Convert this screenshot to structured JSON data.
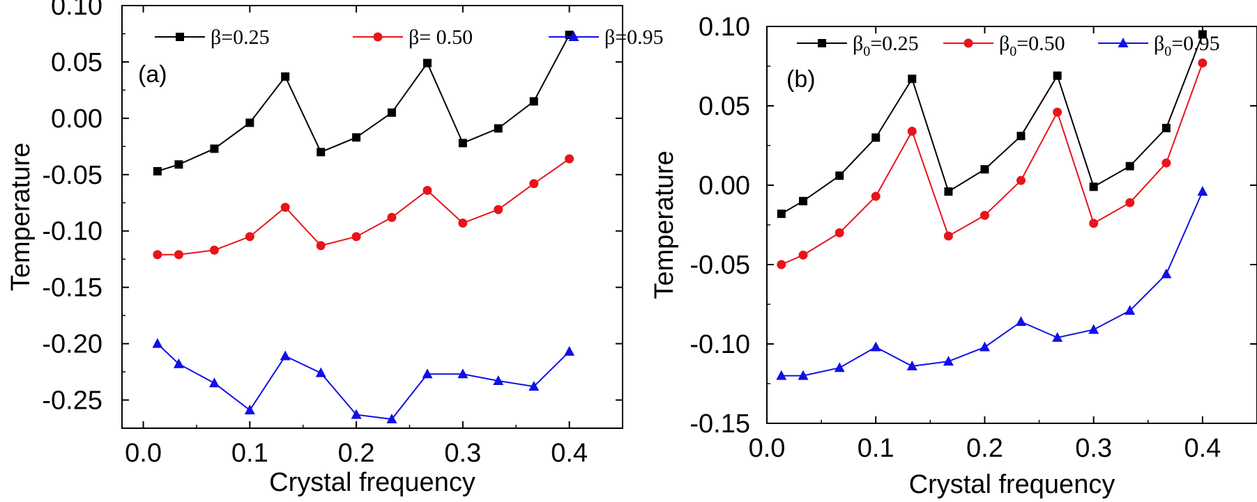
{
  "chart_data": [
    {
      "type": "line",
      "panel_label": "(a)",
      "xlabel": "Crystal frequency",
      "ylabel": "Temperature",
      "xlim": [
        -0.02,
        0.45
      ],
      "ylim": [
        -0.275,
        0.1
      ],
      "xticks": [
        0.0,
        0.1,
        0.2,
        0.3,
        0.4
      ],
      "xtick_labels": [
        "0.0",
        "0.1",
        "0.2",
        "0.3",
        "0.4"
      ],
      "yticks": [
        0.1,
        0.05,
        0.0,
        -0.05,
        -0.1,
        -0.15,
        -0.2,
        -0.25
      ],
      "ytick_labels": [
        "0.10",
        "0.05",
        "0.00",
        "-0.05",
        "-0.10",
        "-0.15",
        "-0.20",
        "-0.25"
      ],
      "legend_position": "top",
      "x": [
        0.0133,
        0.0333,
        0.0667,
        0.1,
        0.1333,
        0.1667,
        0.2,
        0.2333,
        0.2667,
        0.3,
        0.3333,
        0.3667,
        0.4
      ],
      "series": [
        {
          "name": "β=0.25",
          "legend_base": "β",
          "legend_sub": "",
          "legend_value": "=0.25",
          "color": "#000000",
          "marker": "square",
          "values": [
            -0.047,
            -0.041,
            -0.027,
            -0.004,
            0.037,
            -0.03,
            -0.017,
            0.005,
            0.049,
            -0.022,
            -0.009,
            0.015,
            0.074
          ]
        },
        {
          "name": "β= 0.50",
          "legend_base": "β",
          "legend_sub": "",
          "legend_value": "= 0.50",
          "color": "#e8141b",
          "marker": "circle",
          "values": [
            -0.121,
            -0.121,
            -0.117,
            -0.105,
            -0.079,
            -0.113,
            -0.105,
            -0.088,
            -0.064,
            -0.093,
            -0.081,
            -0.058,
            -0.036
          ]
        },
        {
          "name": "β=0.95",
          "legend_base": "β",
          "legend_sub": "",
          "legend_value": "=0.95",
          "color": "#1010e6",
          "marker": "triangle",
          "values": [
            -0.2,
            -0.218,
            -0.235,
            -0.259,
            -0.211,
            -0.226,
            -0.263,
            -0.267,
            -0.227,
            -0.227,
            -0.233,
            -0.238,
            -0.207
          ]
        }
      ]
    },
    {
      "type": "line",
      "panel_label": "(b)",
      "xlabel": "Crystal frequency",
      "ylabel": "Temperature",
      "xlim": [
        0.0,
        0.45
      ],
      "ylim": [
        -0.15,
        0.1
      ],
      "xticks": [
        0.0,
        0.1,
        0.2,
        0.3,
        0.4
      ],
      "xtick_labels": [
        "0.0",
        "0.1",
        "0.2",
        "0.3",
        "0.4"
      ],
      "yticks": [
        0.1,
        0.05,
        0.0,
        -0.05,
        -0.1,
        -0.15
      ],
      "ytick_labels": [
        "0.10",
        "0.05",
        "0.00",
        "-0.05",
        "-0.10",
        "-0.15"
      ],
      "legend_position": "top",
      "x": [
        0.0133,
        0.0333,
        0.0667,
        0.1,
        0.1333,
        0.1667,
        0.2,
        0.2333,
        0.2667,
        0.3,
        0.3333,
        0.3667,
        0.4
      ],
      "series": [
        {
          "name": "β0=0.25",
          "legend_base": "β",
          "legend_sub": "0",
          "legend_value": "=0.25",
          "color": "#000000",
          "marker": "square",
          "values": [
            -0.018,
            -0.01,
            0.006,
            0.03,
            0.067,
            -0.004,
            0.01,
            0.031,
            0.069,
            -0.001,
            0.012,
            0.036,
            0.095
          ]
        },
        {
          "name": "β0=0.50",
          "legend_base": "β",
          "legend_sub": "0",
          "legend_value": "=0.50",
          "color": "#e8141b",
          "marker": "circle",
          "values": [
            -0.05,
            -0.044,
            -0.03,
            -0.007,
            0.034,
            -0.032,
            -0.019,
            0.003,
            0.046,
            -0.024,
            -0.011,
            0.014,
            0.077
          ]
        },
        {
          "name": "β0=0.95",
          "legend_base": "β",
          "legend_sub": "0",
          "legend_value": "=0.95",
          "color": "#1010e6",
          "marker": "triangle",
          "values": [
            -0.12,
            -0.12,
            -0.115,
            -0.102,
            -0.114,
            -0.111,
            -0.102,
            -0.086,
            -0.096,
            -0.091,
            -0.079,
            -0.056,
            -0.004
          ]
        }
      ]
    }
  ]
}
